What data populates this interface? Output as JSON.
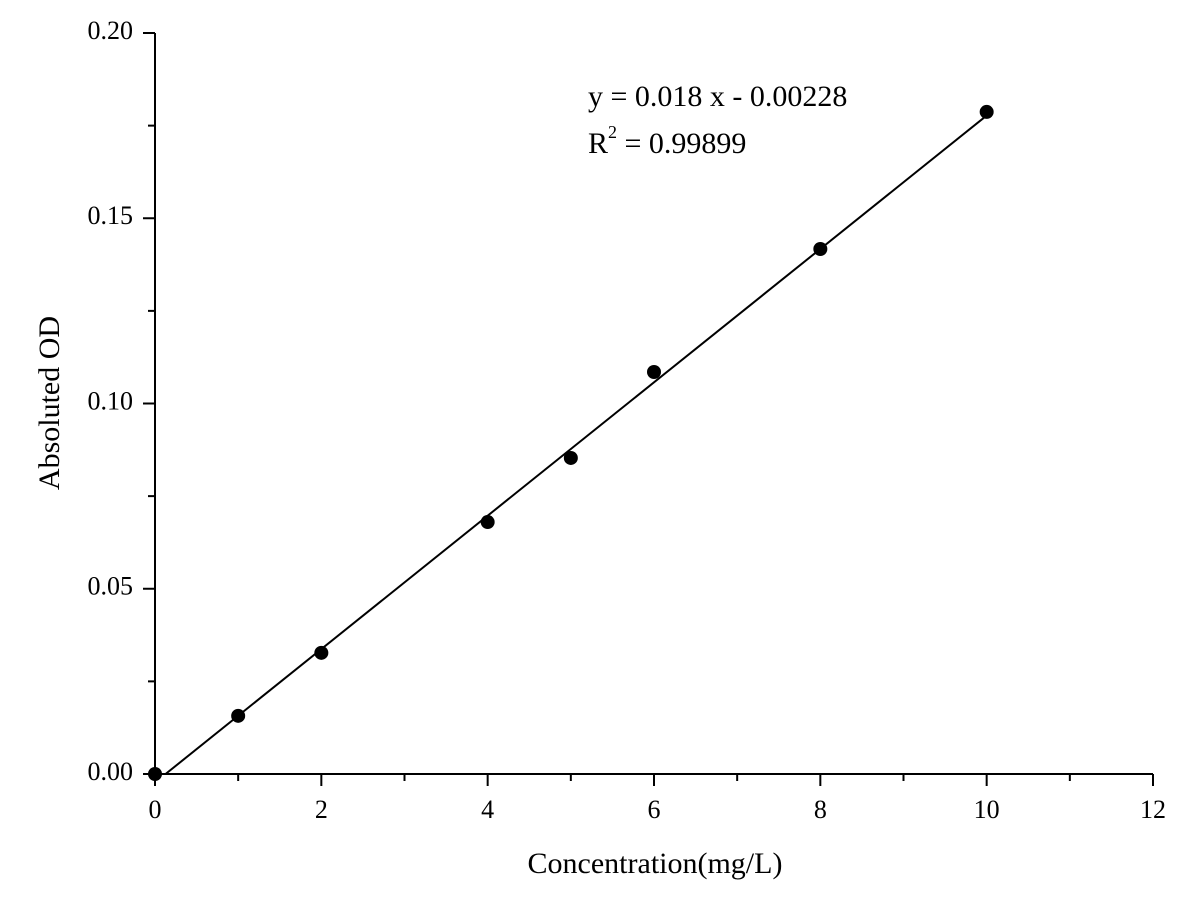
{
  "chart_data": {
    "type": "scatter",
    "x_label": "Concentration(mg/L)",
    "y_label": "Absoluted OD",
    "x": [
      0,
      1,
      2,
      4,
      5,
      6,
      8,
      10
    ],
    "values": [
      0,
      0.0157,
      0.0327,
      0.068,
      0.0853,
      0.1085,
      0.1417,
      0.1787
    ],
    "color": "#000000",
    "fit": {
      "x": [
        0.127,
        10
      ],
      "values": [
        0,
        0.17772
      ],
      "color": "#000000"
    },
    "xlim": [
      0,
      12
    ],
    "ylim": [
      0,
      0.2
    ],
    "xticks": [
      0,
      2,
      4,
      6,
      8,
      10,
      12
    ],
    "xminorticks": [
      1,
      3,
      5,
      7,
      9,
      11
    ],
    "yticks": [
      {
        "value": 0,
        "label": "0.00"
      },
      0.05,
      {
        "value": 0.1,
        "label": "0.10"
      },
      0.15,
      {
        "value": 0.2,
        "label": "0.20"
      }
    ],
    "yminorticks": [
      0.025,
      0.075,
      0.125,
      0.175
    ],
    "annotation": {
      "equation": "y = 0.018 x - 0.00228",
      "r_base": "R",
      "r_sup": "2",
      "r_rest": " = 0.99899"
    }
  }
}
